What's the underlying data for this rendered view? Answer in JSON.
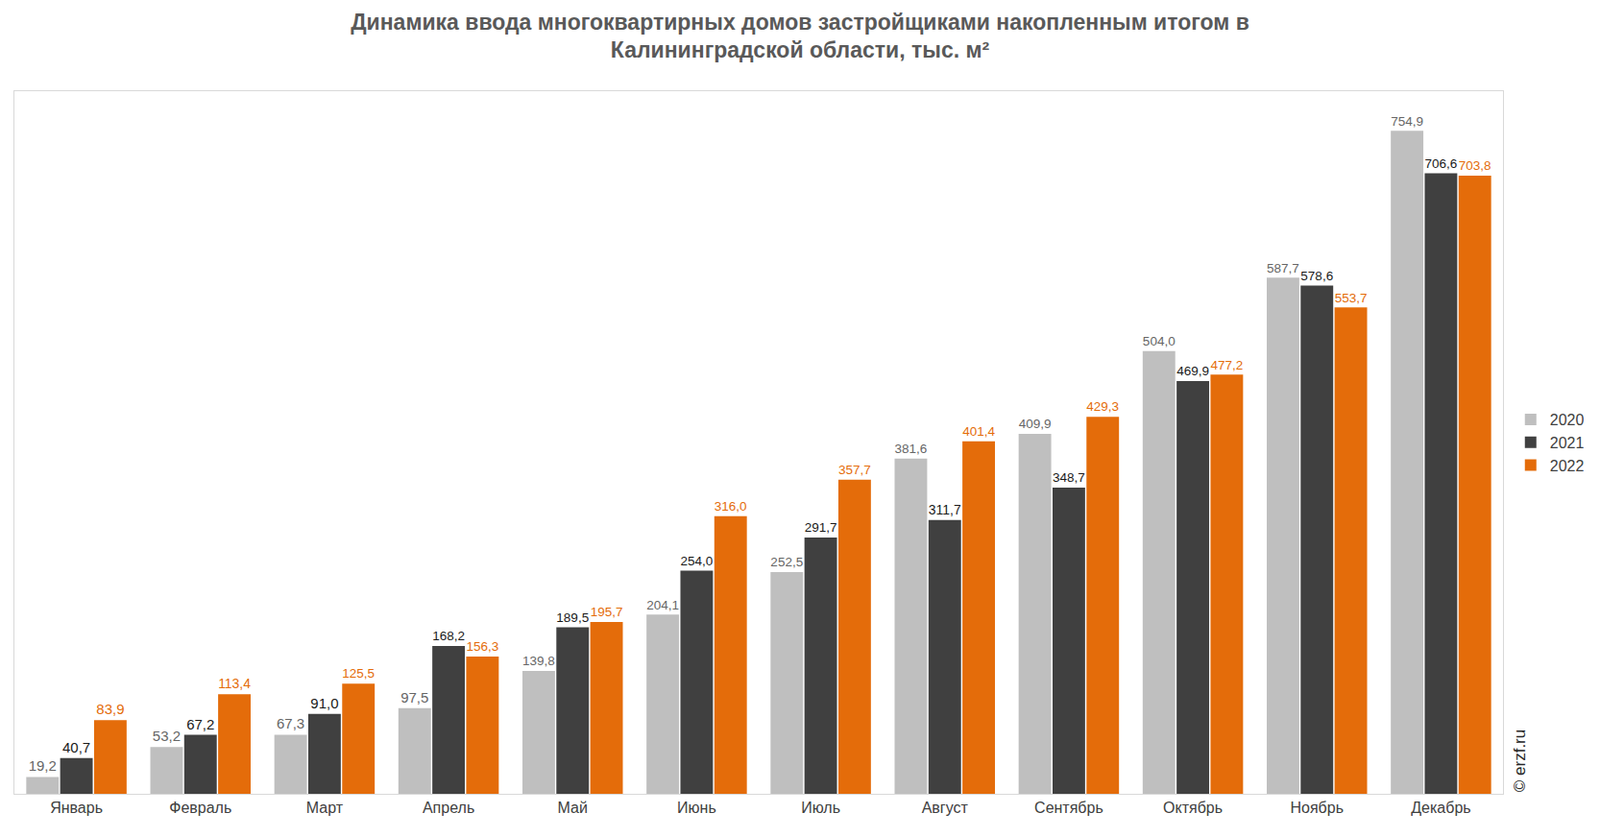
{
  "chart_data": {
    "type": "bar",
    "title": "Динамика ввода многоквартирных домов застройщиками накопленным итогом в\nКалининградской области, тыс. м²",
    "annotations": [
      "© erzf.ru"
    ],
    "categories": [
      "Январь",
      "Февраль",
      "Март",
      "Апрель",
      "Май",
      "Июнь",
      "Июль",
      "Август",
      "Сентябрь",
      "Октябрь",
      "Ноябрь",
      "Декабрь"
    ],
    "series": [
      {
        "name": "2020",
        "color": "#bfbfbf",
        "values": [
          19.2,
          53.2,
          67.3,
          97.5,
          139.8,
          204.1,
          252.5,
          381.6,
          409.9,
          504.0,
          587.7,
          754.9
        ],
        "value_labels": [
          "19,2",
          "53,2",
          "67,3",
          "97,5",
          "139,8",
          "204,1",
          "252,5",
          "381,6",
          "409,9",
          "504,0",
          "587,7",
          "754,9"
        ]
      },
      {
        "name": "2021",
        "color": "#404040",
        "values": [
          40.7,
          67.2,
          91.0,
          168.2,
          189.5,
          254.0,
          291.7,
          311.7,
          348.7,
          469.9,
          578.6,
          706.6
        ],
        "value_labels": [
          "40,7",
          "67,2",
          "91,0",
          "168,2",
          "189,5",
          "254,0",
          "291,7",
          "311,7",
          "348,7",
          "469,9",
          "578,6",
          "706,6"
        ]
      },
      {
        "name": "2022",
        "color": "#e46c0a",
        "values": [
          83.9,
          113.4,
          125.5,
          156.3,
          195.7,
          316.0,
          357.7,
          401.4,
          429.3,
          477.2,
          553.7,
          703.8
        ],
        "value_labels": [
          "83,9",
          "113,4",
          "125,5",
          "156,3",
          "195,7",
          "316,0",
          "357,7",
          "401,4",
          "429,3",
          "477,2",
          "553,7",
          "703,8"
        ]
      }
    ],
    "ylim": [
      0,
      800
    ],
    "grid": false,
    "legend": "right",
    "data_labels": true,
    "tick_labels": "x"
  }
}
